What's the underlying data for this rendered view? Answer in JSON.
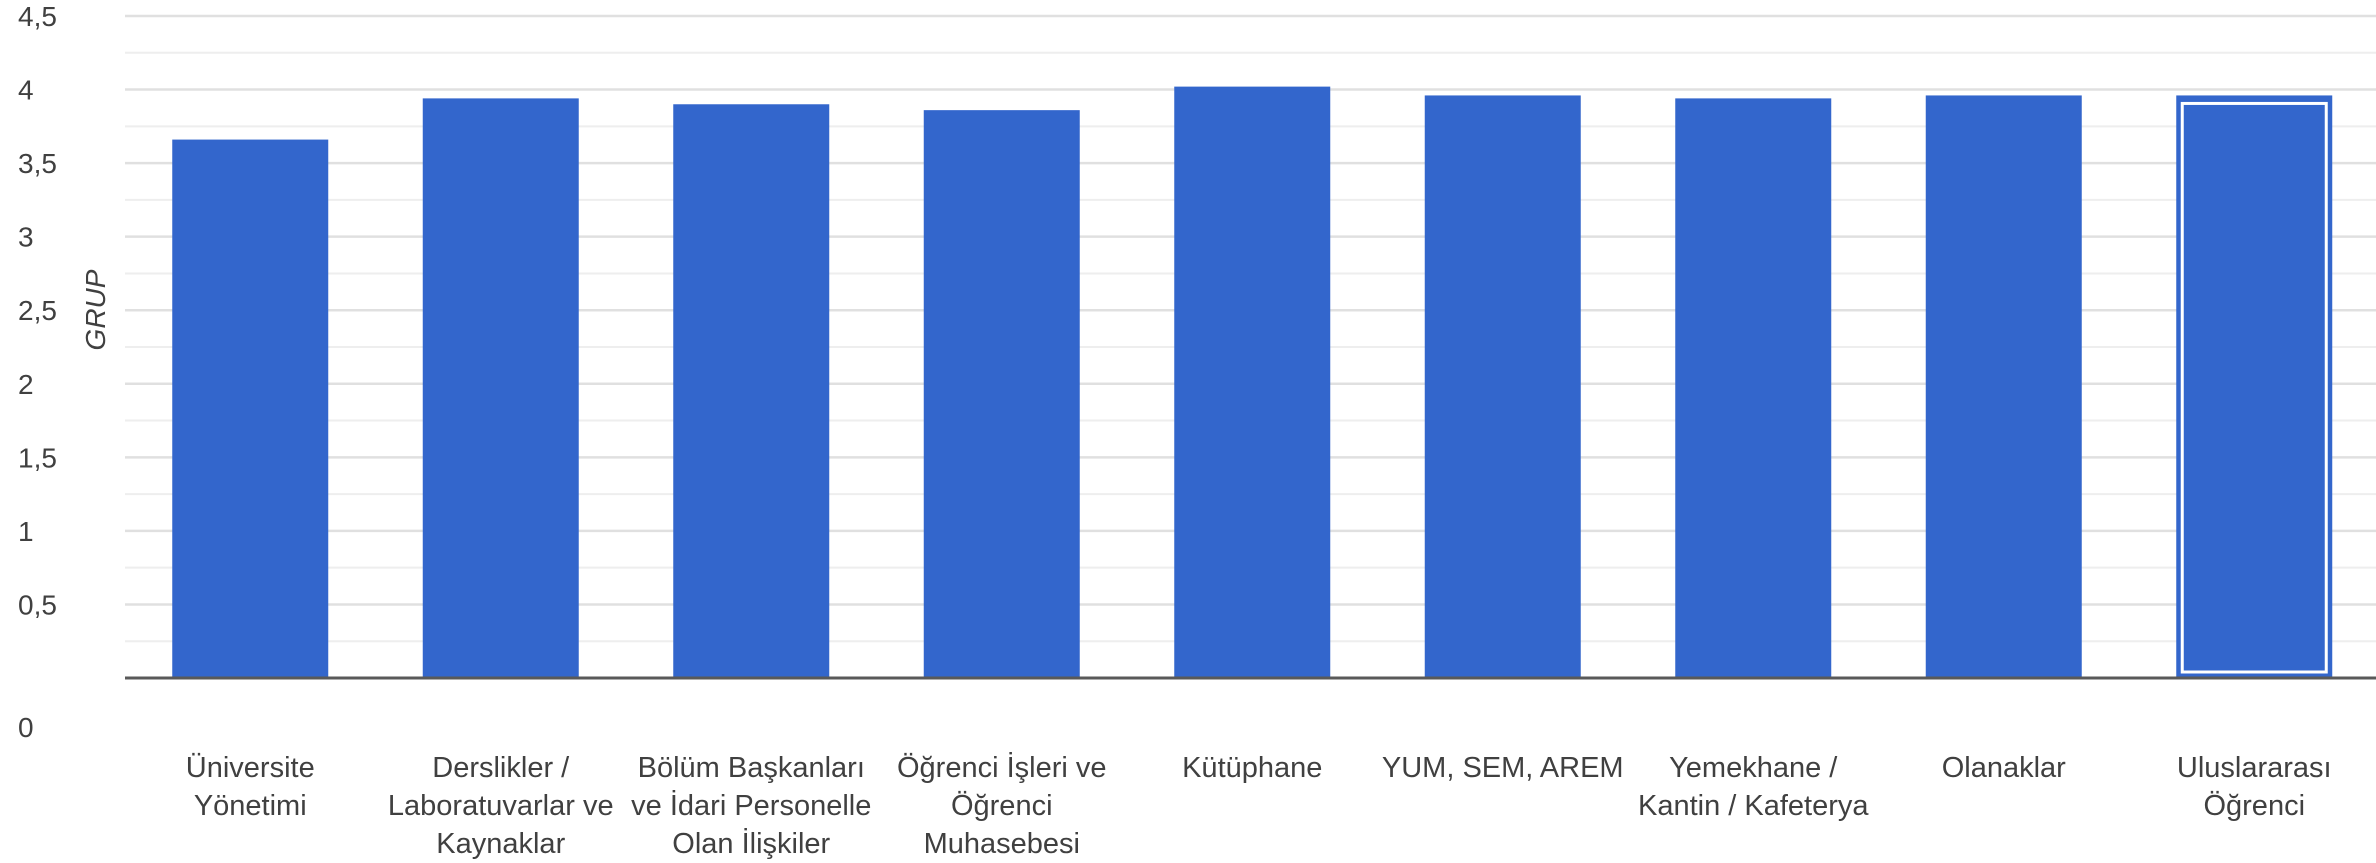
{
  "chart_data": {
    "type": "bar",
    "title": "",
    "xlabel": "",
    "ylabel": "GRUP",
    "ylim": [
      0,
      4.5
    ],
    "yticks": [
      "0",
      "0,5",
      "1",
      "1,5",
      "2",
      "2,5",
      "3",
      "3,5",
      "4",
      "4,5"
    ],
    "grid": true,
    "legend": "none",
    "categories": [
      [
        "Üniversite",
        "Yönetimi"
      ],
      [
        "Derslikler /",
        "Laboratuvarlar ve",
        "Kaynaklar"
      ],
      [
        "Bölüm Başkanları",
        "ve İdari Personelle",
        "Olan İlişkiler"
      ],
      [
        "Öğrenci İşleri ve",
        "Öğrenci",
        "Muhasebesi"
      ],
      [
        "Kütüphane"
      ],
      [
        "YUM, SEM, AREM"
      ],
      [
        "Yemekhane /",
        "Kantin / Kafeterya"
      ],
      [
        "Olanaklar"
      ],
      [
        "Uluslararası",
        "Öğrenci"
      ]
    ],
    "values": [
      3.66,
      3.94,
      3.9,
      3.86,
      4.02,
      3.96,
      3.94,
      3.96,
      3.96
    ],
    "highlighted_index": 8,
    "colors": {
      "bar": "#3366CC",
      "grid": "#E0E0E0",
      "axis": "#595959",
      "text": "#404040"
    }
  }
}
